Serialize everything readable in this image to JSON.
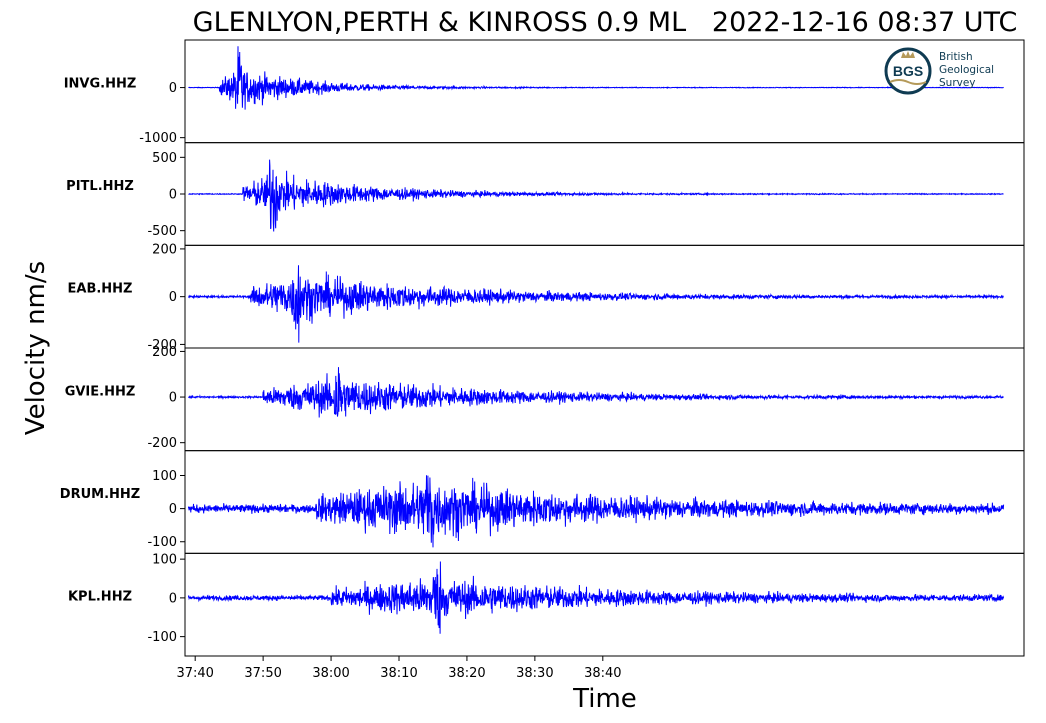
{
  "chart_data": {
    "type": "line",
    "title": "GLENLYON,PERTH & KINROSS 0.9 ML   2022-12-16 08:37 UTC",
    "xlabel": "Time",
    "ylabel": "Velocity nm/s",
    "series_color": "#0000ff",
    "x_ticks": [
      "37:40",
      "37:50",
      "38:00",
      "38:10",
      "38:20",
      "38:30",
      "38:40"
    ],
    "x_range_seconds": [
      38.5,
      162
    ],
    "trace_time_seconds": [
      39,
      159
    ],
    "logo": {
      "text": [
        "British",
        "Geological",
        "Survey"
      ],
      "badge": "BGS",
      "colors": {
        "ring": "#0f3b52",
        "crown": "#b59a5a"
      }
    },
    "panels": [
      {
        "station": "INVG.HHZ",
        "ylim": [
          -1100,
          950
        ],
        "ticks": [
          {
            "v": 0,
            "label": "0"
          },
          {
            "v": -1000,
            "label": "-1000"
          }
        ],
        "onset": 43.6,
        "peak": 880,
        "peak_time": 46.5,
        "decay": 10,
        "noise": 6
      },
      {
        "station": "PITL.HHZ",
        "ylim": [
          -700,
          700
        ],
        "ticks": [
          {
            "v": 500,
            "label": "500"
          },
          {
            "v": 0,
            "label": "0"
          },
          {
            "v": -500,
            "label": "-500"
          }
        ],
        "onset": 47.0,
        "peak": 640,
        "peak_time": 51.5,
        "decay": 14,
        "noise": 6
      },
      {
        "station": "EAB.HHZ",
        "ylim": [
          -215,
          215
        ],
        "ticks": [
          {
            "v": 200,
            "label": "200"
          },
          {
            "v": 0,
            "label": "0"
          },
          {
            "v": -200,
            "label": "-200"
          }
        ],
        "onset": 48.2,
        "peak": 210,
        "peak_time": 55,
        "decay": 22,
        "noise": 4
      },
      {
        "station": "GVIE.HHZ",
        "ylim": [
          -235,
          215
        ],
        "ticks": [
          {
            "v": 200,
            "label": "200"
          },
          {
            "v": 0,
            "label": "0"
          },
          {
            "v": -200,
            "label": "-200"
          }
        ],
        "onset": 50.0,
        "peak": 190,
        "peak_time": 61,
        "decay": 22,
        "noise": 4
      },
      {
        "station": "DRUM.HHZ",
        "ylim": [
          -135,
          175
        ],
        "ticks": [
          {
            "v": 100,
            "label": "100"
          },
          {
            "v": 0,
            "label": "0"
          },
          {
            "v": -100,
            "label": "-100"
          }
        ],
        "onset": 57.8,
        "peak": 170,
        "peak_time": 74.5,
        "decay": 25,
        "noise": 12
      },
      {
        "station": "KPL.HHZ",
        "ylim": [
          -150,
          115
        ],
        "ticks": [
          {
            "v": 100,
            "label": "100"
          },
          {
            "v": 0,
            "label": "0"
          },
          {
            "v": -100,
            "label": "-100"
          }
        ],
        "onset": 60.0,
        "peak": 105,
        "peak_time": 75.5,
        "decay": 25,
        "noise": 6
      }
    ]
  }
}
